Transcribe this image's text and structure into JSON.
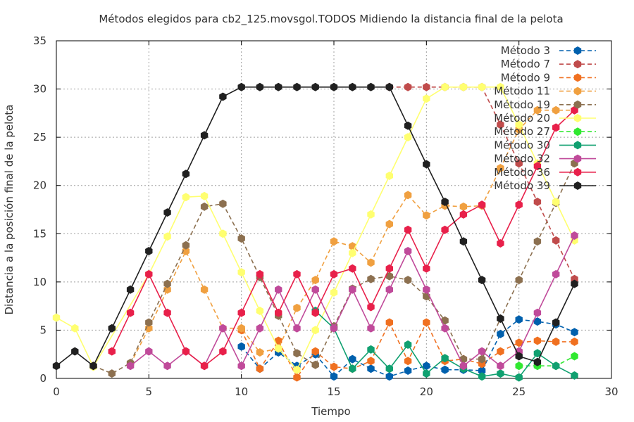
{
  "chart_data": {
    "type": "line",
    "title": "Métodos elegidos para cb2_125.movsgol.TODOS Midiendo la distancia final de la pelota",
    "xlabel": "Tiempo",
    "ylabel": "Distancia a la posición final de la pelota",
    "xlim": [
      0,
      30
    ],
    "ylim": [
      0,
      35
    ],
    "xticks": [
      0,
      5,
      10,
      15,
      20,
      25,
      30
    ],
    "yticks": [
      0,
      5,
      10,
      15,
      20,
      25,
      30,
      35
    ],
    "grid": true,
    "legend_position": "top-right",
    "series": [
      {
        "name": "Método 3",
        "color": "#0060ad",
        "dash": "6,4",
        "points": [
          [
            10,
            3.3
          ],
          [
            11,
            1.0
          ],
          [
            12,
            2.7
          ],
          [
            13,
            1.3
          ],
          [
            14,
            2.5
          ],
          [
            15,
            0.2
          ],
          [
            16,
            2.0
          ],
          [
            17,
            1.0
          ],
          [
            18,
            0.2
          ],
          [
            19,
            0.8
          ],
          [
            20,
            1.3
          ],
          [
            21,
            0.9
          ],
          [
            22,
            0.9
          ],
          [
            23,
            0.8
          ],
          [
            24,
            4.6
          ],
          [
            25,
            6.1
          ],
          [
            26,
            5.9
          ],
          [
            27,
            5.6
          ],
          [
            28,
            4.8
          ]
        ]
      },
      {
        "name": "Método 7",
        "color": "#c04b4b",
        "dash": "6,4",
        "points": [
          [
            18,
            30.2
          ],
          [
            19,
            30.2
          ],
          [
            20,
            30.2
          ],
          [
            21,
            30.2
          ],
          [
            22,
            30.2
          ],
          [
            23,
            30.2
          ],
          [
            24,
            26.3
          ],
          [
            25,
            22.3
          ],
          [
            26,
            18.3
          ],
          [
            27,
            14.3
          ],
          [
            28,
            10.3
          ]
        ]
      },
      {
        "name": "Método 9",
        "color": "#f07020",
        "dash": "6,4",
        "points": [
          [
            10,
            5.0
          ],
          [
            11,
            1.0
          ],
          [
            12,
            3.9
          ],
          [
            13,
            0.1
          ],
          [
            14,
            2.8
          ],
          [
            15,
            1.2
          ],
          [
            16,
            1.0
          ],
          [
            17,
            1.8
          ],
          [
            18,
            5.8
          ],
          [
            19,
            1.8
          ],
          [
            20,
            5.8
          ],
          [
            21,
            1.8
          ],
          [
            22,
            2.0
          ],
          [
            23,
            1.5
          ],
          [
            24,
            2.8
          ],
          [
            25,
            3.7
          ],
          [
            26,
            3.9
          ],
          [
            27,
            3.8
          ],
          [
            28,
            3.8
          ]
        ]
      },
      {
        "name": "Método 11",
        "color": "#f0a040",
        "dash": "6,4",
        "points": [
          [
            4,
            1.5
          ],
          [
            5,
            5.2
          ],
          [
            6,
            9.2
          ],
          [
            7,
            13.2
          ],
          [
            8,
            9.2
          ],
          [
            9,
            5.2
          ],
          [
            10,
            5.2
          ],
          [
            11,
            2.7
          ],
          [
            12,
            3.1
          ],
          [
            13,
            7.3
          ],
          [
            14,
            10.2
          ],
          [
            15,
            14.2
          ],
          [
            16,
            13.7
          ],
          [
            17,
            12.0
          ],
          [
            18,
            16.0
          ],
          [
            19,
            19.0
          ],
          [
            20,
            16.9
          ],
          [
            21,
            17.9
          ],
          [
            22,
            17.8
          ],
          [
            23,
            17.9
          ],
          [
            24,
            21.8
          ],
          [
            25,
            25.8
          ],
          [
            26,
            27.8
          ],
          [
            27,
            27.8
          ],
          [
            28,
            27.8
          ]
        ]
      },
      {
        "name": "Método 19",
        "color": "#8c7050",
        "dash": "6,4",
        "points": [
          [
            2,
            1.3
          ],
          [
            3,
            0.5
          ],
          [
            4,
            1.6
          ],
          [
            5,
            5.8
          ],
          [
            6,
            9.8
          ],
          [
            7,
            13.8
          ],
          [
            8,
            17.8
          ],
          [
            9,
            18.1
          ],
          [
            10,
            14.5
          ],
          [
            11,
            10.5
          ],
          [
            12,
            6.5
          ],
          [
            13,
            2.6
          ],
          [
            14,
            1.4
          ],
          [
            15,
            5.4
          ],
          [
            16,
            9.3
          ],
          [
            17,
            10.3
          ],
          [
            18,
            10.6
          ],
          [
            19,
            10.2
          ],
          [
            20,
            8.5
          ],
          [
            21,
            6.0
          ],
          [
            22,
            2.0
          ],
          [
            23,
            2.0
          ],
          [
            24,
            6.2
          ],
          [
            25,
            10.2
          ],
          [
            26,
            14.2
          ],
          [
            27,
            18.2
          ],
          [
            28,
            22.3
          ]
        ]
      },
      {
        "name": "Método 20",
        "color": "#ffff70",
        "dash": "",
        "points": [
          [
            0,
            6.3
          ],
          [
            1,
            5.2
          ],
          [
            2,
            1.2
          ],
          [
            5,
            10.8
          ],
          [
            6,
            14.7
          ],
          [
            7,
            18.8
          ],
          [
            8,
            18.9
          ],
          [
            9,
            15.0
          ],
          [
            10,
            11.0
          ],
          [
            11,
            7.0
          ],
          [
            12,
            3.1
          ],
          [
            13,
            0.9
          ],
          [
            14,
            5.0
          ],
          [
            15,
            8.9
          ],
          [
            16,
            13.0
          ],
          [
            17,
            17.0
          ],
          [
            18,
            21.0
          ],
          [
            19,
            25.0
          ],
          [
            20,
            29.0
          ],
          [
            21,
            30.2
          ],
          [
            22,
            30.2
          ],
          [
            23,
            30.2
          ],
          [
            24,
            30.2
          ],
          [
            25,
            26.3
          ],
          [
            26,
            22.3
          ],
          [
            27,
            18.3
          ],
          [
            28,
            14.3
          ]
        ]
      },
      {
        "name": "Método 27",
        "color": "#30e830",
        "dash": "6,4",
        "points": [
          [
            25,
            1.3
          ],
          [
            26,
            1.3
          ],
          [
            27,
            1.3
          ],
          [
            28,
            2.3
          ]
        ]
      },
      {
        "name": "Método 30",
        "color": "#10a070",
        "dash": "",
        "points": [
          [
            14,
            7.0
          ],
          [
            15,
            5.2
          ],
          [
            16,
            1.0
          ],
          [
            17,
            3.0
          ],
          [
            18,
            1.0
          ],
          [
            19,
            3.5
          ],
          [
            20,
            0.5
          ],
          [
            21,
            2.1
          ],
          [
            22,
            1.0
          ],
          [
            23,
            0.2
          ],
          [
            24,
            0.5
          ],
          [
            25,
            0.1
          ],
          [
            26,
            2.6
          ],
          [
            27,
            1.3
          ],
          [
            28,
            0.3
          ]
        ]
      },
      {
        "name": "Método 32",
        "color": "#c04a9a",
        "dash": "",
        "points": [
          [
            4,
            1.3
          ],
          [
            5,
            2.8
          ],
          [
            6,
            1.3
          ],
          [
            7,
            2.8
          ],
          [
            8,
            1.3
          ],
          [
            9,
            5.2
          ],
          [
            10,
            1.3
          ],
          [
            11,
            5.2
          ],
          [
            12,
            9.2
          ],
          [
            13,
            5.2
          ],
          [
            14,
            9.2
          ],
          [
            15,
            5.2
          ],
          [
            16,
            9.2
          ],
          [
            17,
            5.2
          ],
          [
            18,
            9.2
          ],
          [
            19,
            13.2
          ],
          [
            20,
            9.2
          ],
          [
            21,
            5.2
          ],
          [
            22,
            1.3
          ],
          [
            23,
            2.8
          ],
          [
            24,
            1.3
          ],
          [
            25,
            2.8
          ],
          [
            26,
            6.8
          ],
          [
            27,
            10.8
          ],
          [
            28,
            14.8
          ]
        ]
      },
      {
        "name": "Método 36",
        "color": "#e8204a",
        "dash": "",
        "points": [
          [
            3,
            2.8
          ],
          [
            4,
            6.8
          ],
          [
            5,
            10.8
          ],
          [
            6,
            6.8
          ],
          [
            7,
            2.8
          ],
          [
            8,
            1.3
          ],
          [
            9,
            2.8
          ],
          [
            10,
            6.8
          ],
          [
            11,
            10.8
          ],
          [
            12,
            6.8
          ],
          [
            13,
            10.8
          ],
          [
            14,
            6.8
          ],
          [
            15,
            10.8
          ],
          [
            16,
            11.4
          ],
          [
            17,
            7.4
          ],
          [
            18,
            11.4
          ],
          [
            19,
            15.4
          ],
          [
            20,
            11.4
          ],
          [
            21,
            15.4
          ],
          [
            22,
            17.0
          ],
          [
            23,
            18.0
          ],
          [
            24,
            14.0
          ],
          [
            25,
            18.0
          ],
          [
            26,
            22.0
          ],
          [
            27,
            26.0
          ],
          [
            28,
            27.8
          ]
        ]
      },
      {
        "name": "Método 39",
        "color": "#202020",
        "dash": "",
        "points": [
          [
            0,
            1.3
          ],
          [
            1,
            2.8
          ],
          [
            2,
            1.3
          ],
          [
            3,
            5.2
          ],
          [
            4,
            9.2
          ],
          [
            5,
            13.2
          ],
          [
            6,
            17.2
          ],
          [
            7,
            21.2
          ],
          [
            8,
            25.2
          ],
          [
            9,
            29.2
          ],
          [
            10,
            30.2
          ],
          [
            11,
            30.2
          ],
          [
            12,
            30.2
          ],
          [
            13,
            30.2
          ],
          [
            14,
            30.2
          ],
          [
            15,
            30.2
          ],
          [
            16,
            30.2
          ],
          [
            17,
            30.2
          ],
          [
            18,
            30.2
          ],
          [
            19,
            26.2
          ],
          [
            20,
            22.2
          ],
          [
            21,
            18.3
          ],
          [
            22,
            14.2
          ],
          [
            23,
            10.2
          ],
          [
            24,
            6.2
          ],
          [
            25,
            2.3
          ],
          [
            26,
            1.7
          ],
          [
            27,
            5.8
          ],
          [
            28,
            9.8
          ]
        ]
      }
    ]
  }
}
